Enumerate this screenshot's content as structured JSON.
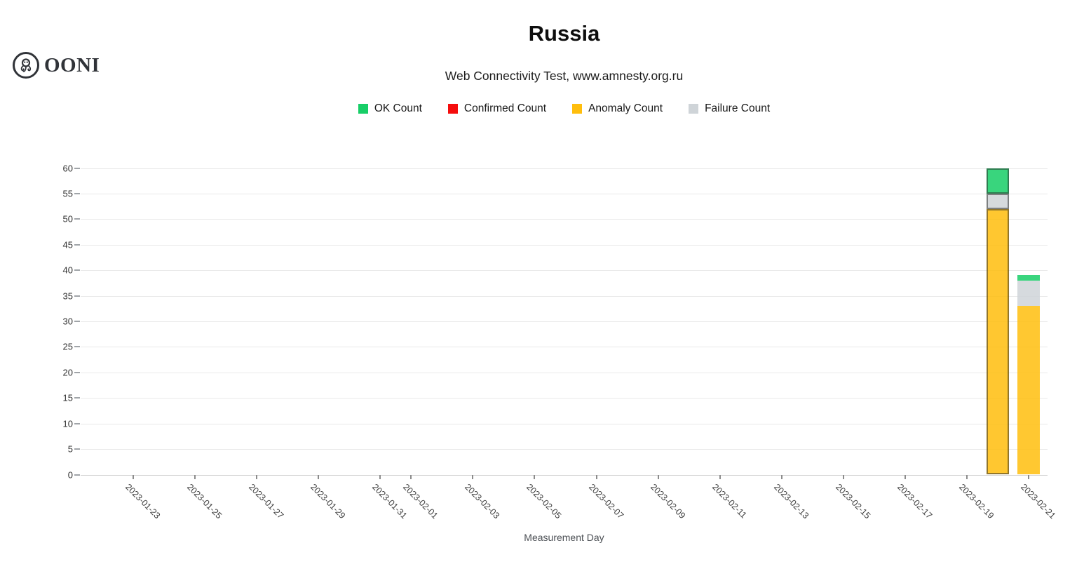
{
  "brand": {
    "wordmark": "OONI"
  },
  "header": {
    "title": "Russia",
    "subtitle": "Web Connectivity Test, www.amnesty.org.ru"
  },
  "legend": {
    "items": [
      {
        "label": "OK Count",
        "color": "#17CE67"
      },
      {
        "label": "Confirmed Count",
        "color": "#F50D0D"
      },
      {
        "label": "Anomaly Count",
        "color": "#FFBE0D"
      },
      {
        "label": "Failure Count",
        "color": "#CFD4D8"
      }
    ]
  },
  "chart_data": {
    "type": "bar",
    "stacked": true,
    "title": "Russia",
    "subtitle": "Web Connectivity Test, www.amnesty.org.ru",
    "xlabel": "Measurement Day",
    "ylabel": "",
    "ylim": [
      0,
      60
    ],
    "ytick_step": 5,
    "grid": "horizontal",
    "legend_position": "top",
    "bar_fill_opacity": 0.85,
    "x_domain": [
      "2023-01-23",
      "2023-02-21"
    ],
    "x_tick_labels": [
      "2023-01-23",
      "2023-01-25",
      "2023-01-27",
      "2023-01-29",
      "2023-01-31",
      "2023-02-01",
      "2023-02-03",
      "2023-02-05",
      "2023-02-07",
      "2023-02-09",
      "2023-02-11",
      "2023-02-13",
      "2023-02-15",
      "2023-02-17",
      "2023-02-19",
      "2023-02-21"
    ],
    "categories": [
      "2023-02-20",
      "2023-02-21"
    ],
    "series": [
      {
        "name": "OK Count",
        "color": "#17CE67",
        "values": [
          5,
          1
        ]
      },
      {
        "name": "Confirmed Count",
        "color": "#F50D0D",
        "values": [
          0,
          0
        ]
      },
      {
        "name": "Anomaly Count",
        "color": "#FFBE0D",
        "values": [
          52,
          33
        ]
      },
      {
        "name": "Failure Count",
        "color": "#CFD4D8",
        "values": [
          3,
          5
        ]
      }
    ],
    "stack_order_bottom_to_top": [
      "Anomaly Count",
      "Confirmed Count",
      "Failure Count",
      "OK Count"
    ],
    "highlighted_category": "2023-02-20",
    "bar_totals": [
      60,
      39
    ]
  }
}
